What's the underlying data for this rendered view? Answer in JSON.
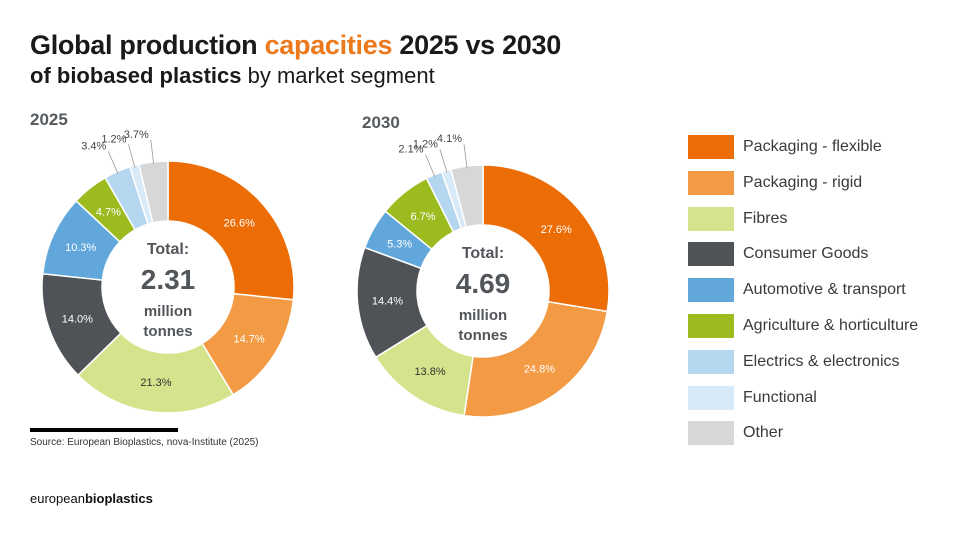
{
  "header": {
    "title_part1": "Global production ",
    "title_highlight": "capacities",
    "title_part2": " 2025 vs 2030",
    "subtitle_bold": "of biobased plastics",
    "subtitle_rest": " by market segment"
  },
  "footer": {
    "source": "Source: European Bioplastics, nova-Institute (2025)",
    "brand_light": "european",
    "brand_bold": "bioplastics"
  },
  "colors": {
    "accent": "#ec7a1c"
  },
  "chart_data": [
    {
      "type": "pie",
      "variant": "donut",
      "title": "2025",
      "unit": "%",
      "total_label": "Total:",
      "total_value": "2.31",
      "total_unit_line1": "million",
      "total_unit_line2": "tonnes",
      "categories": [
        "Packaging - flexible",
        "Packaging - rigid",
        "Fibres",
        "Consumer Goods",
        "Automotive & transport",
        "Agriculture & horticulture",
        "Electrics & electronics",
        "Functional",
        "Other"
      ],
      "values": [
        26.6,
        14.7,
        21.3,
        14.0,
        10.3,
        4.7,
        3.4,
        1.2,
        3.7
      ],
      "labels": [
        "26.6%",
        "14.7%",
        "21.3%",
        "14.0%",
        "10.3%",
        "4.7%",
        "3.4%",
        "1.2%",
        "3.7%"
      ]
    },
    {
      "type": "pie",
      "variant": "donut",
      "title": "2030",
      "unit": "%",
      "total_label": "Total:",
      "total_value": "4.69",
      "total_unit_line1": "million",
      "total_unit_line2": "tonnes",
      "categories": [
        "Packaging - flexible",
        "Packaging - rigid",
        "Fibres",
        "Consumer Goods",
        "Automotive & transport",
        "Agriculture & horticulture",
        "Electrics & electronics",
        "Functional",
        "Other"
      ],
      "values": [
        27.6,
        24.8,
        13.8,
        14.4,
        5.3,
        6.7,
        2.1,
        1.2,
        4.1
      ],
      "labels": [
        "27.6%",
        "24.8%",
        "13.8%",
        "14.4%",
        "5.3%",
        "6.7%",
        "2.1%",
        "1.2%",
        "4.1%"
      ]
    }
  ],
  "legend": [
    {
      "label": "Packaging - flexible",
      "color": "#ec6c05"
    },
    {
      "label": "Packaging - rigid",
      "color": "#f39a44"
    },
    {
      "label": "Fibres",
      "color": "#d5e38c"
    },
    {
      "label": "Consumer Goods",
      "color": "#4f5357"
    },
    {
      "label": "Automotive & transport",
      "color": "#62a7dc"
    },
    {
      "label": "Agriculture & horticulture",
      "color": "#9bbb1f"
    },
    {
      "label": "Electrics & electronics",
      "color": "#b4d6ee"
    },
    {
      "label": "Functional",
      "color": "#d8e9f7"
    },
    {
      "label": "Other",
      "color": "#d6d7d9"
    }
  ]
}
